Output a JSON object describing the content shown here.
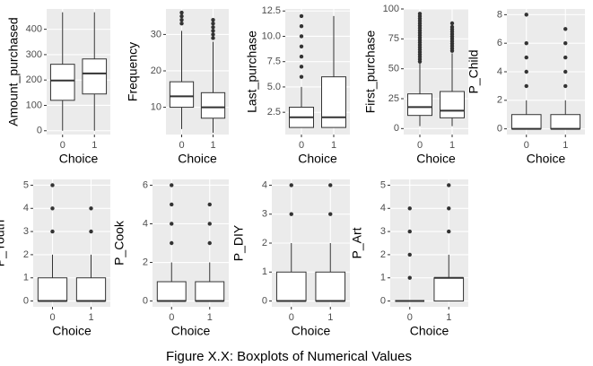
{
  "caption": "Figure X.X: Boxplots of Numerical Values",
  "chart_data": [
    {
      "type": "box",
      "ylabel": "Amount_purchased",
      "xlabel": "Choice",
      "categories": [
        "0",
        "1"
      ],
      "ylim": [
        -15,
        480
      ],
      "yticks": [
        0,
        100,
        200,
        300,
        400
      ],
      "grid": true,
      "color": "#ffffff",
      "boxes": [
        {
          "min": 0,
          "q1": 120,
          "median": 198,
          "q3": 262,
          "max": 467,
          "outliers": []
        },
        {
          "min": 0,
          "q1": 145,
          "median": 226,
          "q3": 283,
          "max": 467,
          "outliers": []
        }
      ]
    },
    {
      "type": "box",
      "ylabel": "Frequency",
      "xlabel": "Choice",
      "categories": [
        "0",
        "1"
      ],
      "ylim": [
        2.5,
        37
      ],
      "yticks": [
        10,
        20,
        30
      ],
      "grid": true,
      "color": "#ffffff",
      "boxes": [
        {
          "min": 4,
          "q1": 10,
          "median": 13,
          "q3": 17,
          "max": 31,
          "outliers": [
            33,
            34,
            35,
            36
          ]
        },
        {
          "min": 3,
          "q1": 7,
          "median": 10,
          "q3": 14,
          "max": 28,
          "outliers": [
            29,
            30,
            31,
            32,
            33,
            34
          ]
        }
      ]
    },
    {
      "type": "box",
      "ylabel": "Last_purchase",
      "xlabel": "Choice",
      "categories": [
        "0",
        "1"
      ],
      "ylim": [
        0.3,
        12.7
      ],
      "yticks": [
        {
          "value": 2.5,
          "label": "2.5"
        },
        {
          "value": 5,
          "label": "5.0"
        },
        {
          "value": 7.5,
          "label": "7.5"
        },
        {
          "value": 10,
          "label": "10.0"
        },
        {
          "value": 12.5,
          "label": "12.5"
        }
      ],
      "grid": true,
      "color": "#ffffff",
      "boxes": [
        {
          "min": 1,
          "q1": 1,
          "median": 2,
          "q3": 3,
          "max": 5,
          "outliers": [
            6,
            7,
            8,
            9,
            10,
            11,
            12
          ]
        },
        {
          "min": 1,
          "q1": 1,
          "median": 2,
          "q3": 6,
          "max": 12,
          "outliers": []
        }
      ]
    },
    {
      "type": "box",
      "ylabel": "First_purchase",
      "xlabel": "Choice",
      "categories": [
        "0",
        "1"
      ],
      "ylim": [
        -5,
        100
      ],
      "yticks": [
        0,
        25,
        50,
        75,
        100
      ],
      "grid": true,
      "color": "#ffffff",
      "boxes": [
        {
          "min": 2,
          "q1": 11,
          "median": 18,
          "q3": 29,
          "max": 55,
          "outliers": [
            56,
            58,
            60,
            62,
            64,
            66,
            68,
            70,
            72,
            74,
            76,
            78,
            80,
            82,
            84,
            86,
            88,
            90,
            92,
            94,
            96
          ]
        },
        {
          "min": 2,
          "q1": 9,
          "median": 15,
          "q3": 31,
          "max": 63,
          "outliers": [
            65,
            67,
            69,
            71,
            73,
            75,
            77,
            79,
            81,
            83,
            85,
            88
          ]
        }
      ]
    },
    {
      "type": "box",
      "ylabel": "P_Child",
      "xlabel": "Choice",
      "categories": [
        "0",
        "1"
      ],
      "ylim": [
        -0.4,
        8.4
      ],
      "yticks": [
        0,
        2,
        4,
        6,
        8
      ],
      "grid": true,
      "color": "#ffffff",
      "boxes": [
        {
          "min": 0,
          "q1": 0,
          "median": 0,
          "q3": 1,
          "max": 2,
          "outliers": [
            3,
            4,
            5,
            6,
            8
          ]
        },
        {
          "min": 0,
          "q1": 0,
          "median": 0,
          "q3": 1,
          "max": 2,
          "outliers": [
            3,
            4,
            5,
            6,
            7
          ]
        }
      ]
    },
    {
      "type": "box",
      "ylabel": "P_Youth",
      "xlabel": "Choice",
      "categories": [
        "0",
        "1"
      ],
      "ylim": [
        -0.25,
        5.25
      ],
      "yticks": [
        0,
        1,
        2,
        3,
        4,
        5
      ],
      "grid": true,
      "color": "#ffffff",
      "boxes": [
        {
          "min": 0,
          "q1": 0,
          "median": 0,
          "q3": 1,
          "max": 2,
          "outliers": [
            3,
            4,
            5
          ]
        },
        {
          "min": 0,
          "q1": 0,
          "median": 0,
          "q3": 1,
          "max": 2,
          "outliers": [
            3,
            4
          ]
        }
      ]
    },
    {
      "type": "box",
      "ylabel": "P_Cook",
      "xlabel": "Choice",
      "categories": [
        "0",
        "1"
      ],
      "ylim": [
        -0.3,
        6.3
      ],
      "yticks": [
        0,
        2,
        4,
        6
      ],
      "grid": true,
      "color": "#ffffff",
      "boxes": [
        {
          "min": 0,
          "q1": 0,
          "median": 0,
          "q3": 1,
          "max": 2,
          "outliers": [
            3,
            4,
            5,
            6
          ]
        },
        {
          "min": 0,
          "q1": 0,
          "median": 0,
          "q3": 1,
          "max": 2,
          "outliers": [
            3,
            4,
            5
          ]
        }
      ]
    },
    {
      "type": "box",
      "ylabel": "P_DIY",
      "xlabel": "Choice",
      "categories": [
        "0",
        "1"
      ],
      "ylim": [
        -0.2,
        4.2
      ],
      "yticks": [
        0,
        1,
        2,
        3,
        4
      ],
      "grid": true,
      "color": "#ffffff",
      "boxes": [
        {
          "min": 0,
          "q1": 0,
          "median": 0,
          "q3": 1,
          "max": 2,
          "outliers": [
            3,
            4
          ]
        },
        {
          "min": 0,
          "q1": 0,
          "median": 0,
          "q3": 1,
          "max": 2,
          "outliers": [
            3,
            4
          ]
        }
      ]
    },
    {
      "type": "box",
      "ylabel": "P_Art",
      "xlabel": "Choice",
      "categories": [
        "0",
        "1"
      ],
      "ylim": [
        -0.25,
        5.25
      ],
      "yticks": [
        0,
        1,
        2,
        3,
        4,
        5
      ],
      "grid": true,
      "color": "#ffffff",
      "boxes": [
        {
          "min": 0,
          "q1": 0,
          "median": 0,
          "q3": 0,
          "max": 0,
          "outliers": [
            1,
            2,
            3,
            4
          ]
        },
        {
          "min": 0,
          "q1": 0,
          "median": 1,
          "q3": 1,
          "max": 2,
          "outliers": [
            3,
            4,
            5
          ]
        }
      ]
    }
  ]
}
